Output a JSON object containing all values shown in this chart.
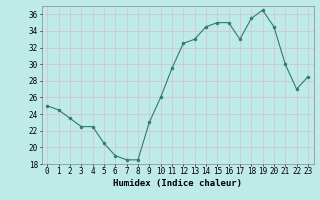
{
  "x": [
    0,
    1,
    2,
    3,
    4,
    5,
    6,
    7,
    8,
    9,
    10,
    11,
    12,
    13,
    14,
    15,
    16,
    17,
    18,
    19,
    20,
    21,
    22,
    23
  ],
  "y": [
    25,
    24.5,
    23.5,
    22.5,
    22.5,
    20.5,
    19,
    18.5,
    18.5,
    23,
    26,
    29.5,
    32.5,
    33,
    34.5,
    35,
    35,
    33,
    35.5,
    36.5,
    34.5,
    30,
    27,
    28.5
  ],
  "line_color": "#2e7d6e",
  "marker": "o",
  "marker_size": 2.0,
  "bg_color": "#beeae8",
  "grid_color": "#d0c8c8",
  "xlabel": "Humidex (Indice chaleur)",
  "ylim": [
    18,
    37
  ],
  "xlim": [
    -0.5,
    23.5
  ],
  "yticks": [
    18,
    20,
    22,
    24,
    26,
    28,
    30,
    32,
    34,
    36
  ],
  "xticks": [
    0,
    1,
    2,
    3,
    4,
    5,
    6,
    7,
    8,
    9,
    10,
    11,
    12,
    13,
    14,
    15,
    16,
    17,
    18,
    19,
    20,
    21,
    22,
    23
  ],
  "xlabel_fontsize": 6.5,
  "tick_fontsize": 5.5
}
